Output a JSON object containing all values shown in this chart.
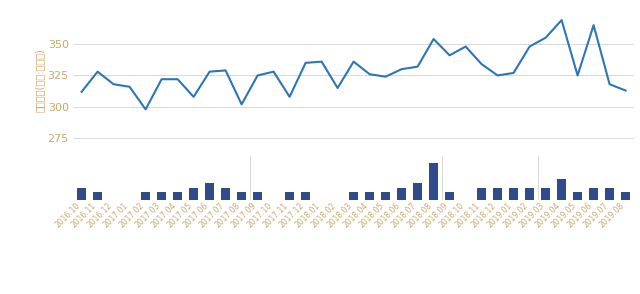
{
  "labels": [
    "2016.10",
    "2016.11",
    "2016.12",
    "2017.01",
    "2017.02",
    "2017.03",
    "2017.04",
    "2017.05",
    "2017.06",
    "2017.07",
    "2017.08",
    "2017.09",
    "2017.10",
    "2017.11",
    "2017.12",
    "2018.01",
    "2018.02",
    "2018.03",
    "2018.04",
    "2018.05",
    "2018.06",
    "2018.07",
    "2018.08",
    "2018.09",
    "2018.10",
    "2018.11",
    "2018.12",
    "2019.01",
    "2019.02",
    "2019.03",
    "2019.04",
    "2019.05",
    "2019.06",
    "2019.07",
    "2019.08"
  ],
  "line_values": [
    312,
    328,
    318,
    316,
    298,
    322,
    322,
    308,
    328,
    329,
    302,
    325,
    328,
    308,
    335,
    336,
    315,
    336,
    326,
    324,
    330,
    332,
    354,
    341,
    348,
    334,
    325,
    327,
    348,
    355,
    369,
    325,
    365,
    318,
    313
  ],
  "bar_values": [
    3,
    2,
    0,
    0,
    2,
    2,
    2,
    3,
    4,
    3,
    2,
    2,
    0,
    2,
    2,
    0,
    0,
    2,
    2,
    2,
    3,
    4,
    9,
    2,
    0,
    3,
    3,
    3,
    3,
    3,
    5,
    2,
    3,
    3,
    2
  ],
  "line_color": "#2E75B6",
  "bar_color": "#2E4B8C",
  "ylabel": "거래금액(단위:백만원)",
  "yticks_line": [
    275,
    300,
    325,
    350
  ],
  "background_color": "#ffffff",
  "tick_color": "#C8A96E",
  "grid_color": "#d8d8d8"
}
